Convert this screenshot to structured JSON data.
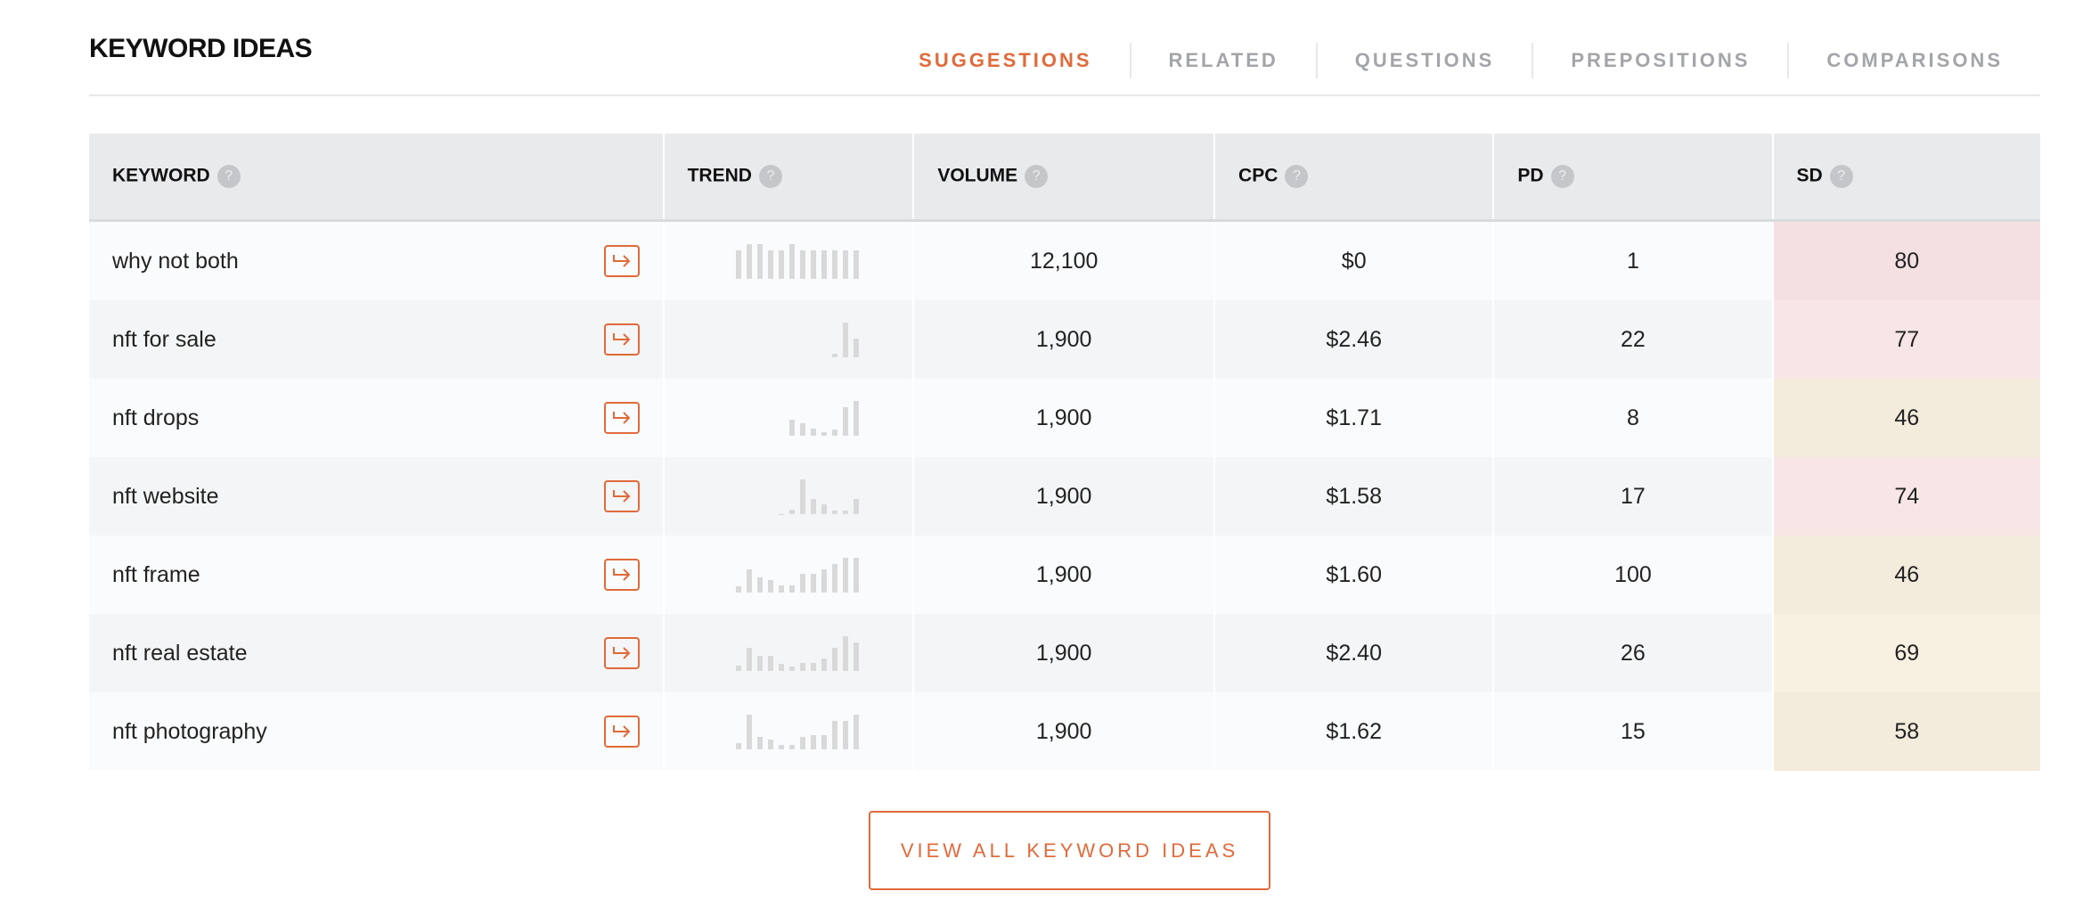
{
  "header": {
    "title": "KEYWORD IDEAS"
  },
  "tabs": [
    {
      "label": "SUGGESTIONS",
      "active": true
    },
    {
      "label": "RELATED",
      "active": false
    },
    {
      "label": "QUESTIONS",
      "active": false
    },
    {
      "label": "PREPOSITIONS",
      "active": false
    },
    {
      "label": "COMPARISONS",
      "active": false
    }
  ],
  "colors": {
    "accent": "#e06a3b",
    "sd_high": "#f5e0e1",
    "sd_high2": "#f8e6e6",
    "sd_mid": "#f3ebdc",
    "sd_mid2": "#f8f0e1"
  },
  "table": {
    "columns": [
      {
        "label": "KEYWORD",
        "help_icon": "question-icon"
      },
      {
        "label": "TREND",
        "help_icon": "question-icon"
      },
      {
        "label": "VOLUME",
        "help_icon": "question-icon"
      },
      {
        "label": "CPC",
        "help_icon": "question-icon"
      },
      {
        "label": "PD",
        "help_icon": "question-icon"
      },
      {
        "label": "SD",
        "help_icon": "question-icon"
      }
    ],
    "rows": [
      {
        "keyword": "why not both",
        "trend": [
          81,
          100,
          100,
          81,
          81,
          100,
          81,
          81,
          81,
          81,
          81,
          81
        ],
        "volume": "12,100",
        "cpc": "$0",
        "pd": "1",
        "sd": "80",
        "sd_color": "#f5e0e1"
      },
      {
        "keyword": "nft for sale",
        "trend": [
          0,
          0,
          0,
          0,
          0,
          0,
          0,
          0,
          0,
          11,
          100,
          55
        ],
        "volume": "1,900",
        "cpc": "$2.46",
        "pd": "22",
        "sd": "77",
        "sd_color": "#f8e6e6"
      },
      {
        "keyword": "nft drops",
        "trend": [
          0,
          0,
          0,
          0,
          0,
          45,
          36,
          20,
          11,
          17,
          82,
          100
        ],
        "volume": "1,900",
        "cpc": "$1.71",
        "pd": "8",
        "sd": "46",
        "sd_color": "#f3ebdc"
      },
      {
        "keyword": "nft website",
        "trend": [
          0,
          0,
          0,
          0,
          1,
          14,
          100,
          44,
          29,
          10,
          10,
          44
        ],
        "volume": "1,900",
        "cpc": "$1.58",
        "pd": "17",
        "sd": "74",
        "sd_color": "#f8e6e6"
      },
      {
        "keyword": "nft frame",
        "trend": [
          17,
          67,
          44,
          36,
          20,
          20,
          53,
          53,
          67,
          81,
          100,
          100
        ],
        "volume": "1,900",
        "cpc": "$1.60",
        "pd": "100",
        "sd": "46",
        "sd_color": "#f3ebdc"
      },
      {
        "keyword": "nft real estate",
        "trend": [
          16,
          67,
          44,
          44,
          21,
          14,
          22,
          22,
          37,
          67,
          100,
          82
        ],
        "volume": "1,900",
        "cpc": "$2.40",
        "pd": "26",
        "sd": "69",
        "sd_color": "#f8f0e1"
      },
      {
        "keyword": "nft photography",
        "trend": [
          19,
          100,
          36,
          29,
          13,
          13,
          36,
          42,
          42,
          82,
          82,
          100
        ],
        "volume": "1,900",
        "cpc": "$1.62",
        "pd": "15",
        "sd": "58",
        "sd_color": "#f3ebdc"
      }
    ]
  },
  "footer": {
    "view_all_label": "VIEW ALL KEYWORD IDEAS"
  }
}
